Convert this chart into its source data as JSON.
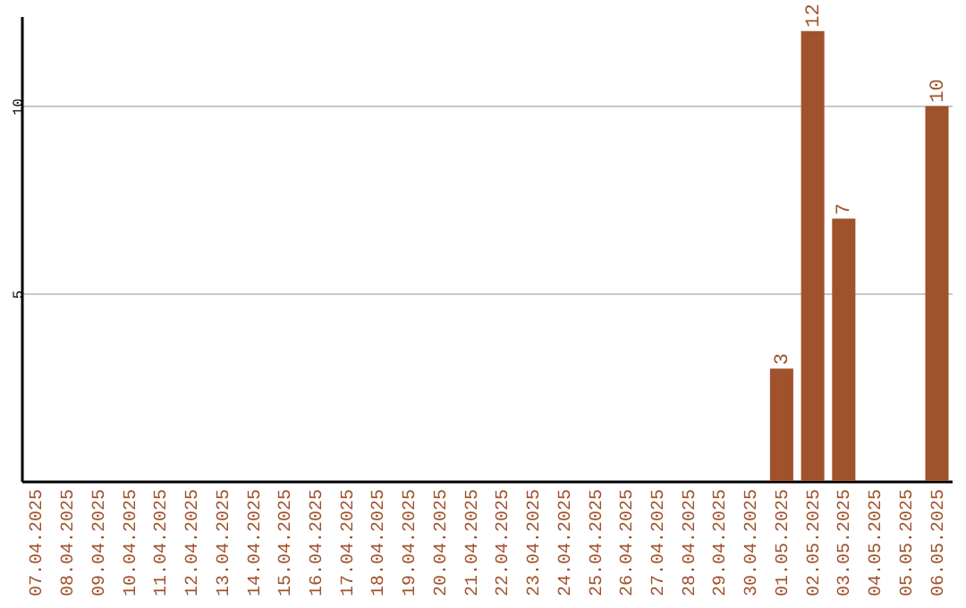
{
  "chart_data": {
    "type": "bar",
    "categories": [
      "07.04.2025",
      "08.04.2025",
      "09.04.2025",
      "10.04.2025",
      "11.04.2025",
      "12.04.2025",
      "13.04.2025",
      "14.04.2025",
      "15.04.2025",
      "16.04.2025",
      "17.04.2025",
      "18.04.2025",
      "19.04.2025",
      "20.04.2025",
      "21.04.2025",
      "22.04.2025",
      "23.04.2025",
      "24.04.2025",
      "25.04.2025",
      "26.04.2025",
      "27.04.2025",
      "28.04.2025",
      "29.04.2025",
      "30.04.2025",
      "01.05.2025",
      "02.05.2025",
      "03.05.2025",
      "04.05.2025",
      "05.05.2025",
      "06.05.2025"
    ],
    "values": [
      0,
      0,
      0,
      0,
      0,
      0,
      0,
      0,
      0,
      0,
      0,
      0,
      0,
      0,
      0,
      0,
      0,
      0,
      0,
      0,
      0,
      0,
      0,
      0,
      3,
      12,
      7,
      0,
      0,
      10
    ],
    "value_labels": [
      null,
      null,
      null,
      null,
      null,
      null,
      null,
      null,
      null,
      null,
      null,
      null,
      null,
      null,
      null,
      null,
      null,
      null,
      null,
      null,
      null,
      null,
      null,
      null,
      "3",
      "12",
      "7",
      null,
      null,
      "10"
    ],
    "color": "#a0522d",
    "ylim": [
      0,
      12.4
    ],
    "yticks": [
      5,
      10
    ],
    "grid": "y"
  }
}
